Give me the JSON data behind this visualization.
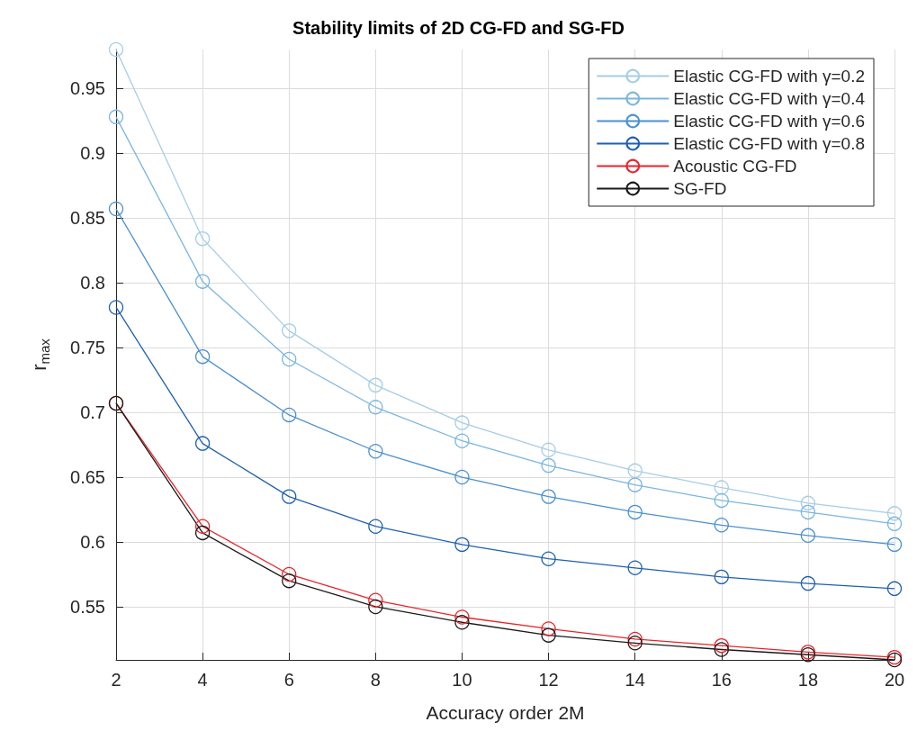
{
  "chart_data": {
    "type": "line",
    "title": "Stability limits of 2D CG-FD and SG-FD",
    "xlabel": "Accuracy order 2M",
    "ylabel": "r$_{max}$",
    "x": [
      2,
      4,
      6,
      8,
      10,
      12,
      14,
      16,
      18,
      20
    ],
    "series": [
      {
        "name": "Elastic CG-FD with γ=0.2",
        "color": "#a6cde6",
        "values": [
          0.98,
          0.834,
          0.763,
          0.721,
          0.692,
          0.671,
          0.655,
          0.642,
          0.63,
          0.622
        ]
      },
      {
        "name": "Elastic CG-FD with γ=0.4",
        "color": "#7ab6e0",
        "values": [
          0.928,
          0.801,
          0.741,
          0.704,
          0.678,
          0.659,
          0.644,
          0.632,
          0.623,
          0.614
        ]
      },
      {
        "name": "Elastic CG-FD with γ=0.6",
        "color": "#4b90d0",
        "values": [
          0.857,
          0.743,
          0.698,
          0.67,
          0.65,
          0.635,
          0.623,
          0.613,
          0.605,
          0.598
        ]
      },
      {
        "name": "Elastic CG-FD with γ=0.8",
        "color": "#1f60b0",
        "values": [
          0.781,
          0.676,
          0.635,
          0.612,
          0.598,
          0.587,
          0.58,
          0.573,
          0.568,
          0.564
        ]
      },
      {
        "name": "Acoustic CG-FD",
        "color": "#e8242a",
        "values": [
          0.707,
          0.612,
          0.575,
          0.555,
          0.542,
          0.533,
          0.525,
          0.52,
          0.515,
          0.511
        ]
      },
      {
        "name": "SG-FD",
        "color": "#1a1a1a",
        "values": [
          0.707,
          0.607,
          0.57,
          0.55,
          0.538,
          0.528,
          0.522,
          0.517,
          0.513,
          0.509
        ]
      }
    ],
    "xlim": [
      2,
      20
    ],
    "xticks": [
      2,
      4,
      6,
      8,
      10,
      12,
      14,
      16,
      18,
      20
    ],
    "ylim": [
      0.509,
      0.98
    ],
    "yticks": [
      0.55,
      0.6,
      0.65,
      0.7,
      0.75,
      0.8,
      0.85,
      0.9,
      0.95
    ],
    "grid": true,
    "legend": "top right",
    "marker": "circle",
    "line_style": "solid"
  }
}
